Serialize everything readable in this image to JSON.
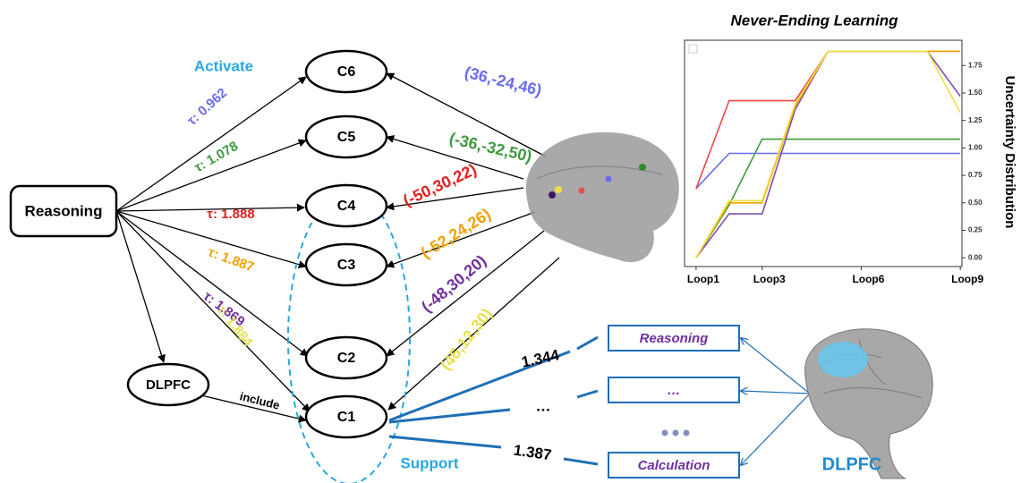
{
  "nodes": {
    "reasoning": "Reasoning",
    "dlpfc": "DLPFC",
    "regions": [
      "C6",
      "C5",
      "C4",
      "C3",
      "C2",
      "C1"
    ]
  },
  "annotations": {
    "activate": "Activate",
    "support": "Support",
    "include": "include",
    "dlpfc_label": "DLPFC"
  },
  "taus": [
    {
      "label": "τ: 0.962",
      "color": "#6b6bf0"
    },
    {
      "label": "τ: 1.078",
      "color": "#3f9a3f"
    },
    {
      "label": "τ: 1.888",
      "color": "#e02020"
    },
    {
      "label": "τ: 1.887",
      "color": "#f5a000"
    },
    {
      "label": "τ: 1.869",
      "color": "#7030a0"
    },
    {
      "label": "τ: 1.884",
      "color": "#e8e050"
    }
  ],
  "coordinates": [
    {
      "label": "(36,-24,46)",
      "color": "#6b6bf0"
    },
    {
      "label": "(-36,-32,50)",
      "color": "#3f9a3f"
    },
    {
      "label": "(-50,30,22)",
      "color": "#e02020"
    },
    {
      "label": "(-52,24,26)",
      "color": "#f5a000"
    },
    {
      "label": "(-48,30,20)",
      "color": "#7030a0"
    },
    {
      "label": "(46,12,30)",
      "color": "#e8e050"
    }
  ],
  "functions": {
    "boxes": [
      "Reasoning",
      "…",
      "Calculation"
    ],
    "weights": [
      1.344,
      "…",
      1.387
    ]
  },
  "chart_data": {
    "type": "line",
    "title": "Never-Ending Learning",
    "y_label": "Uncertainty Distribution",
    "x": [
      1,
      2,
      3,
      4,
      5,
      6,
      7,
      8,
      9
    ],
    "xlim": [
      0.65,
      9.05
    ],
    "xticks": [
      {
        "value": 1,
        "label": "Loop1"
      },
      {
        "value": 3,
        "label": "Loop3"
      },
      {
        "value": 6,
        "label": "Loop6"
      },
      {
        "value": 9,
        "label": "Loop9"
      }
    ],
    "ylim": [
      -0.08,
      1.98
    ],
    "yticks": [
      {
        "value": 0,
        "label": "0.00"
      },
      {
        "value": 0.25,
        "label": "0.25"
      },
      {
        "value": 0.5,
        "label": "0.50"
      },
      {
        "value": 0.75,
        "label": "0.75"
      },
      {
        "value": 1,
        "label": "1.00"
      },
      {
        "value": 1.25,
        "label": "1.25"
      },
      {
        "value": 1.5,
        "label": "1.50"
      },
      {
        "value": 1.75,
        "label": "1.75"
      }
    ],
    "series": [
      {
        "color": "#6b6bf0",
        "values": [
          0.63,
          0.95,
          0.95,
          0.95,
          0.95,
          0.95,
          0.95,
          0.95,
          0.95
        ]
      },
      {
        "color": "#3f9a3f",
        "values": [
          0,
          0.48,
          1.08,
          1.08,
          1.08,
          1.08,
          1.08,
          1.08,
          1.08
        ]
      },
      {
        "color": "#f04848",
        "values": [
          0.63,
          1.43,
          1.43,
          1.43,
          1.88,
          1.88,
          1.88,
          1.88,
          1.88
        ]
      },
      {
        "color": "#7f4fb0",
        "values": [
          0,
          0.4,
          0.4,
          1.35,
          1.88,
          1.88,
          1.88,
          1.88,
          1.47
        ]
      },
      {
        "color": "#f5a000",
        "values": [
          0,
          0.5,
          0.5,
          1.38,
          1.88,
          1.88,
          1.88,
          1.88,
          1.88
        ]
      },
      {
        "color": "#f0e040",
        "values": [
          0,
          0.52,
          0.52,
          1.4,
          1.88,
          1.88,
          1.88,
          1.88,
          1.32
        ]
      }
    ]
  }
}
